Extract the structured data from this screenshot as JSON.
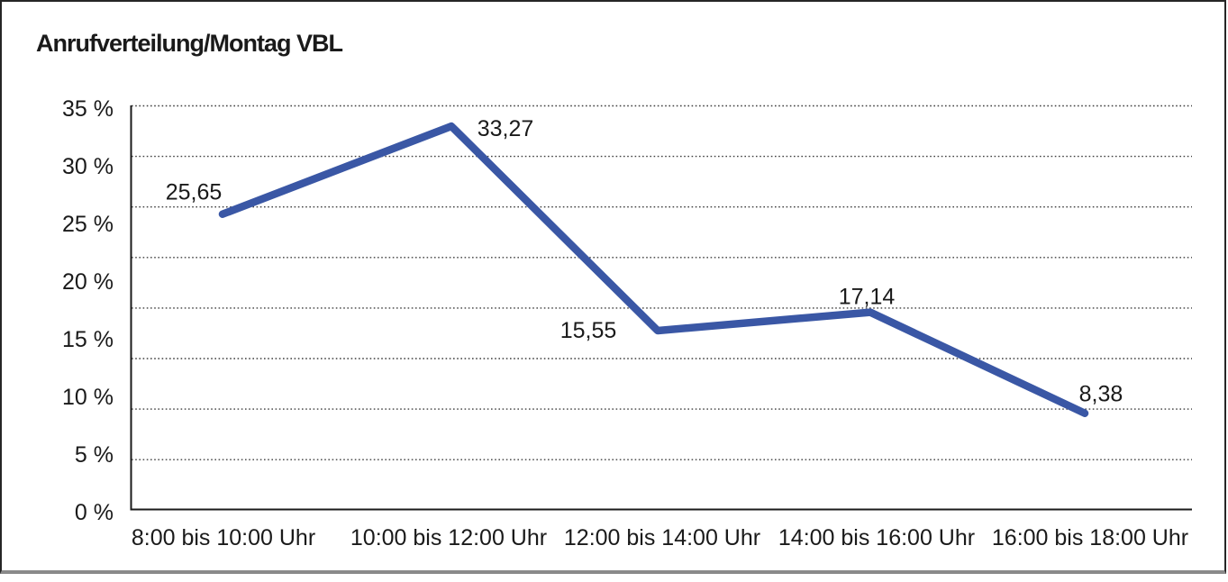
{
  "frame": {
    "background_color": "#ffffff",
    "border_color": "#262626"
  },
  "chart_data": {
    "type": "line",
    "title": "Anrufverteilung/Montag VBL",
    "categories": [
      "8:00 bis 10:00 Uhr",
      "10:00 bis 12:00 Uhr",
      "12:00 bis 14:00 Uhr",
      "14:00 bis 16:00 Uhr",
      "16:00 bis 18:00 Uhr"
    ],
    "values": [
      25.65,
      33.27,
      15.55,
      17.14,
      8.38
    ],
    "value_labels": [
      "25,65",
      "33,27",
      "15,55",
      "17,14",
      "8,38"
    ],
    "ytick_values": [
      0,
      5,
      10,
      15,
      20,
      25,
      30,
      35
    ],
    "ytick_labels": [
      "0 %",
      "5 %",
      "10 %",
      "15 %",
      "20 %",
      "25 %",
      "30 %",
      "35 %"
    ],
    "ylim": [
      0,
      35
    ],
    "xlabel": "",
    "ylabel": "",
    "grid": "horizontal-dotted",
    "legend": "none",
    "line_color": "#3A57A5",
    "axis_color": "#1a1a1a",
    "grid_color": "#3f3f3f",
    "text_color": "#1a1a1a"
  }
}
